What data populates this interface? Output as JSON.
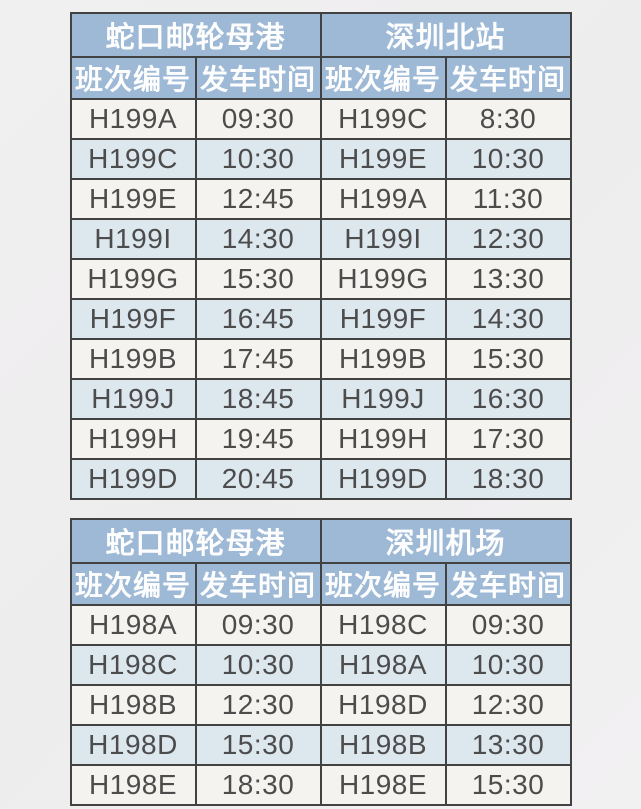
{
  "page": {
    "background_color": "#f0eff0",
    "header_bg_color": "#9db9d6",
    "header_text_color": "#fdfdfd",
    "row_alt_color": "#dde7ee",
    "row_base_color": "#f5f3ef",
    "border_color": "#424242",
    "data_text_color": "#4c4c4c"
  },
  "tables": [
    {
      "station_headers": [
        "蛇口邮轮母港",
        "深圳北站"
      ],
      "column_headers": [
        "班次编号",
        "发车时间",
        "班次编号",
        "发车时间"
      ],
      "rows": [
        [
          "H199A",
          "09:30",
          "H199C",
          "8:30"
        ],
        [
          "H199C",
          "10:30",
          "H199E",
          "10:30"
        ],
        [
          "H199E",
          "12:45",
          "H199A",
          "11:30"
        ],
        [
          "H199I",
          "14:30",
          "H199I",
          "12:30"
        ],
        [
          "H199G",
          "15:30",
          "H199G",
          "13:30"
        ],
        [
          "H199F",
          "16:45",
          "H199F",
          "14:30"
        ],
        [
          "H199B",
          "17:45",
          "H199B",
          "15:30"
        ],
        [
          "H199J",
          "18:45",
          "H199J",
          "16:30"
        ],
        [
          "H199H",
          "19:45",
          "H199H",
          "17:30"
        ],
        [
          "H199D",
          "20:45",
          "H199D",
          "18:30"
        ]
      ]
    },
    {
      "station_headers": [
        "蛇口邮轮母港",
        "深圳机场"
      ],
      "column_headers": [
        "班次编号",
        "发车时间",
        "班次编号",
        "发车时间"
      ],
      "rows": [
        [
          "H198A",
          "09:30",
          "H198C",
          "09:30"
        ],
        [
          "H198C",
          "10:30",
          "H198A",
          "10:30"
        ],
        [
          "H198B",
          "12:30",
          "H198D",
          "12:30"
        ],
        [
          "H198D",
          "15:30",
          "H198B",
          "13:30"
        ],
        [
          "H198E",
          "18:30",
          "H198E",
          "15:30"
        ]
      ]
    }
  ]
}
